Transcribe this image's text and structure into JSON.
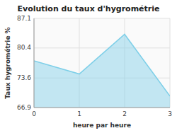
{
  "chart_data": {
    "type": "area",
    "title": "Evolution du taux d'hygrométrie",
    "xlabel": "heure par heure",
    "ylabel": "Taux hygrométrie %",
    "x": [
      0,
      1,
      2,
      3
    ],
    "values": [
      77.5,
      74.5,
      83.5,
      69.5
    ],
    "xlim": [
      0,
      3
    ],
    "ylim": [
      66.9,
      87.1
    ],
    "xticks": [
      0,
      1,
      2,
      3
    ],
    "yticks": [
      66.9,
      73.6,
      80.4,
      87.1
    ],
    "grid": true,
    "color": "#7ecfe8"
  }
}
